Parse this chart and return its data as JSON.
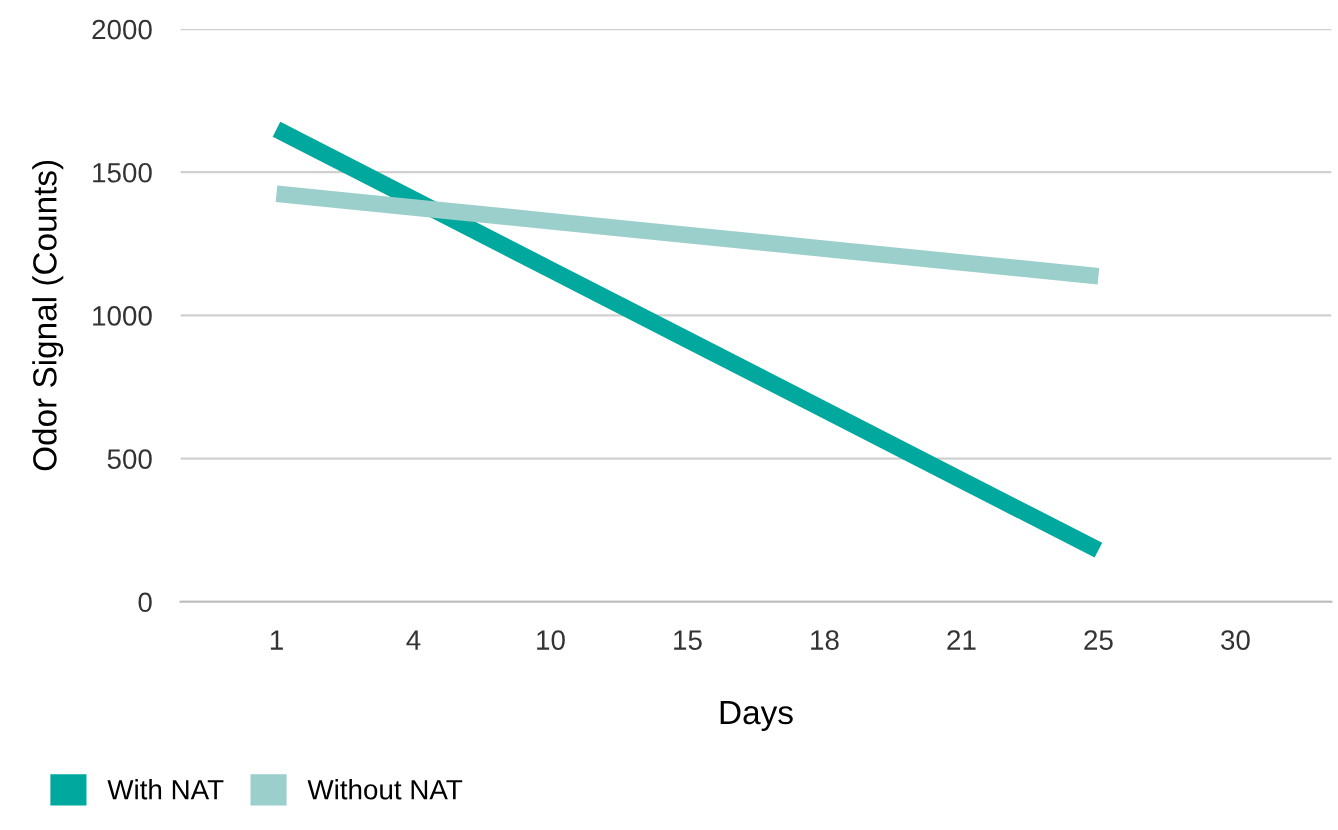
{
  "chart_data": {
    "type": "line",
    "xlabel": "Days",
    "ylabel": "Odor Signal (Counts)",
    "categories": [
      "1",
      "4",
      "10",
      "15",
      "18",
      "21",
      "25",
      "30"
    ],
    "series": [
      {
        "name": "With NAT",
        "color": "#00a89d",
        "values": [
          1650,
          1405,
          1160,
          915,
          670,
          425,
          180,
          null
        ]
      },
      {
        "name": "Without NAT",
        "color": "#9bcfcb",
        "values": [
          1425,
          1377,
          1329,
          1281,
          1233,
          1185,
          1137,
          null
        ]
      }
    ],
    "ylim": [
      0,
      2000
    ],
    "yticks": [
      0,
      500,
      1000,
      1500,
      2000
    ],
    "grid": "y",
    "legend": "bottom left",
    "marker": "none",
    "line_style": "solid"
  }
}
